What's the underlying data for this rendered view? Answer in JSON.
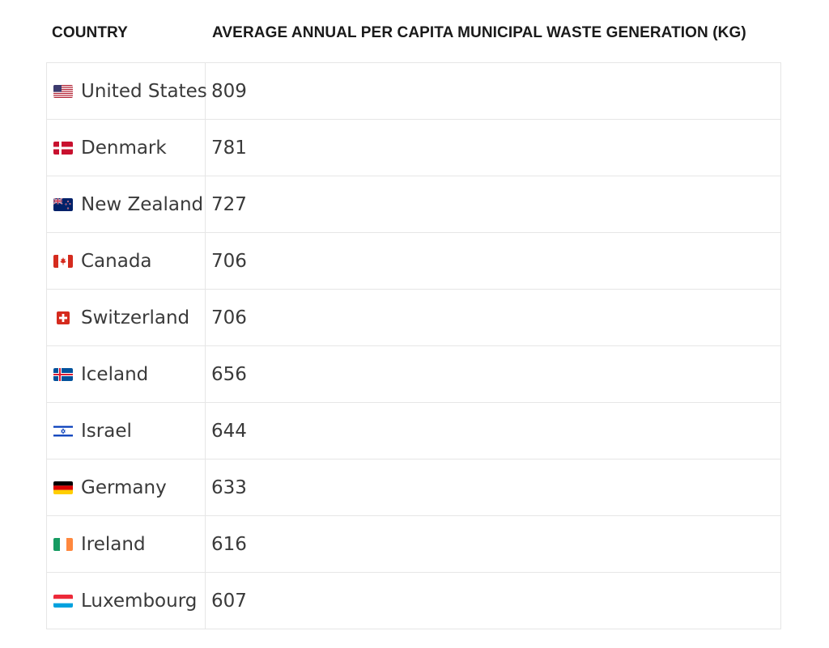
{
  "headers": {
    "country": "COUNTRY",
    "value": "AVERAGE ANNUAL PER CAPITA MUNICIPAL WASTE GENERATION (KG)"
  },
  "rows": [
    {
      "country": "United States",
      "value": "809",
      "flag": "us-flag-icon"
    },
    {
      "country": "Denmark",
      "value": "781",
      "flag": "denmark-flag-icon"
    },
    {
      "country": "New Zealand",
      "value": "727",
      "flag": "new-zealand-flag-icon"
    },
    {
      "country": "Canada",
      "value": "706",
      "flag": "canada-flag-icon"
    },
    {
      "country": "Switzerland",
      "value": "706",
      "flag": "switzerland-flag-icon"
    },
    {
      "country": "Iceland",
      "value": "656",
      "flag": "iceland-flag-icon"
    },
    {
      "country": "Israel",
      "value": "644",
      "flag": "israel-flag-icon"
    },
    {
      "country": "Germany",
      "value": "633",
      "flag": "germany-flag-icon"
    },
    {
      "country": "Ireland",
      "value": "616",
      "flag": "ireland-flag-icon"
    },
    {
      "country": "Luxembourg",
      "value": "607",
      "flag": "luxembourg-flag-icon"
    }
  ]
}
